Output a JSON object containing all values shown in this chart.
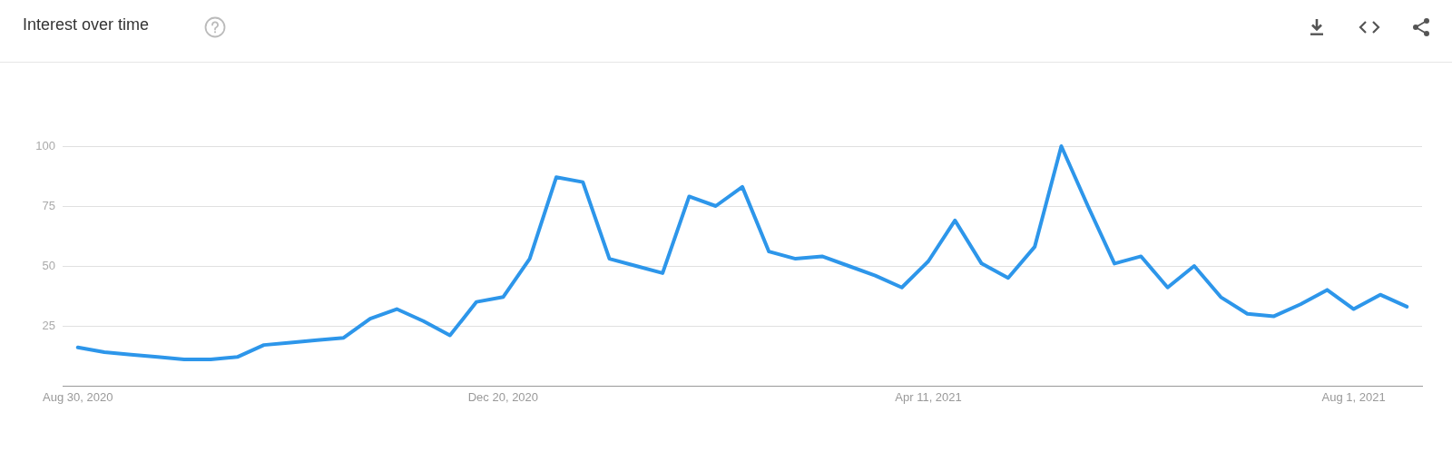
{
  "chart_data": {
    "type": "line",
    "title": "Interest over time",
    "x": [
      "2020-08-30",
      "2020-09-06",
      "2020-09-13",
      "2020-09-20",
      "2020-09-27",
      "2020-10-04",
      "2020-10-11",
      "2020-10-18",
      "2020-10-25",
      "2020-11-01",
      "2020-11-08",
      "2020-11-15",
      "2020-11-22",
      "2020-11-29",
      "2020-12-06",
      "2020-12-13",
      "2020-12-20",
      "2020-12-27",
      "2021-01-03",
      "2021-01-10",
      "2021-01-17",
      "2021-01-24",
      "2021-01-31",
      "2021-02-07",
      "2021-02-14",
      "2021-02-21",
      "2021-02-28",
      "2021-03-07",
      "2021-03-14",
      "2021-03-21",
      "2021-03-28",
      "2021-04-04",
      "2021-04-11",
      "2021-04-18",
      "2021-04-25",
      "2021-05-02",
      "2021-05-09",
      "2021-05-16",
      "2021-05-23",
      "2021-05-30",
      "2021-06-06",
      "2021-06-13",
      "2021-06-20",
      "2021-06-27",
      "2021-07-04",
      "2021-07-11",
      "2021-07-18",
      "2021-07-25",
      "2021-08-01",
      "2021-08-08",
      "2021-08-15"
    ],
    "series": [
      {
        "color": "#2d96ea",
        "values": [
          16,
          14,
          13,
          12,
          11,
          11,
          12,
          17,
          18,
          19,
          20,
          28,
          32,
          27,
          21,
          35,
          37,
          53,
          87,
          85,
          53,
          50,
          47,
          79,
          75,
          83,
          56,
          53,
          54,
          50,
          46,
          41,
          52,
          69,
          51,
          45,
          58,
          100,
          75,
          51,
          54,
          41,
          50,
          37,
          30,
          29,
          34,
          40,
          32,
          38,
          33
        ]
      }
    ],
    "xlim": [
      "2020-08-26",
      "2021-08-19"
    ],
    "xticks": [
      {
        "value": "2020-08-30",
        "label": "Aug 30, 2020"
      },
      {
        "value": "2020-12-20",
        "label": "Dec 20, 2020"
      },
      {
        "value": "2021-04-11",
        "label": "Apr 11, 2021"
      },
      {
        "value": "2021-08-01",
        "label": "Aug 1, 2021"
      }
    ],
    "ylim": [
      0,
      100
    ],
    "yticks": [
      25,
      50,
      75,
      100
    ],
    "grid": "y",
    "legend": false,
    "marker": "none",
    "line_style": "solid"
  }
}
